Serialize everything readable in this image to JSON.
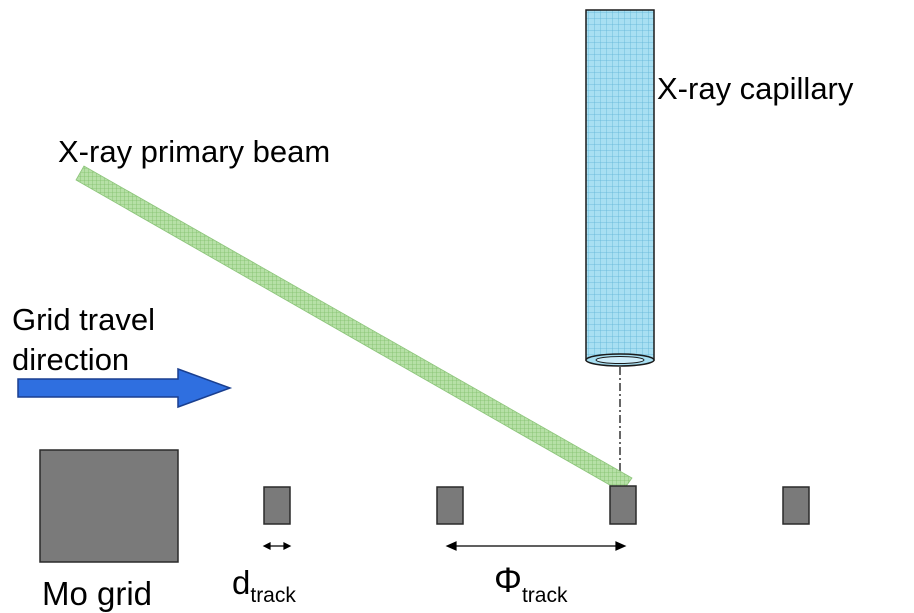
{
  "labels": {
    "capillary": "X-ray capillary",
    "beam": "X-ray primary beam",
    "grid_travel_line1": "Grid travel",
    "grid_travel_line2": "direction",
    "mo_grid": "Mo grid",
    "d_main": "d",
    "d_sub": "track",
    "phi_main": "Φ",
    "phi_sub": "track"
  },
  "colors": {
    "capillary_fill": "#a8dff2",
    "capillary_grid": "#5fb3d6",
    "beam_fill": "#b6e0a6",
    "beam_grid": "#7fbf6a",
    "arrow_fill": "#2f6fe0",
    "arrow_stroke": "#1a3f8f",
    "block_fill": "#7a7a7a",
    "block_stroke": "#2a2a2a"
  },
  "icons": {
    "arrow": "right-arrow-icon"
  }
}
